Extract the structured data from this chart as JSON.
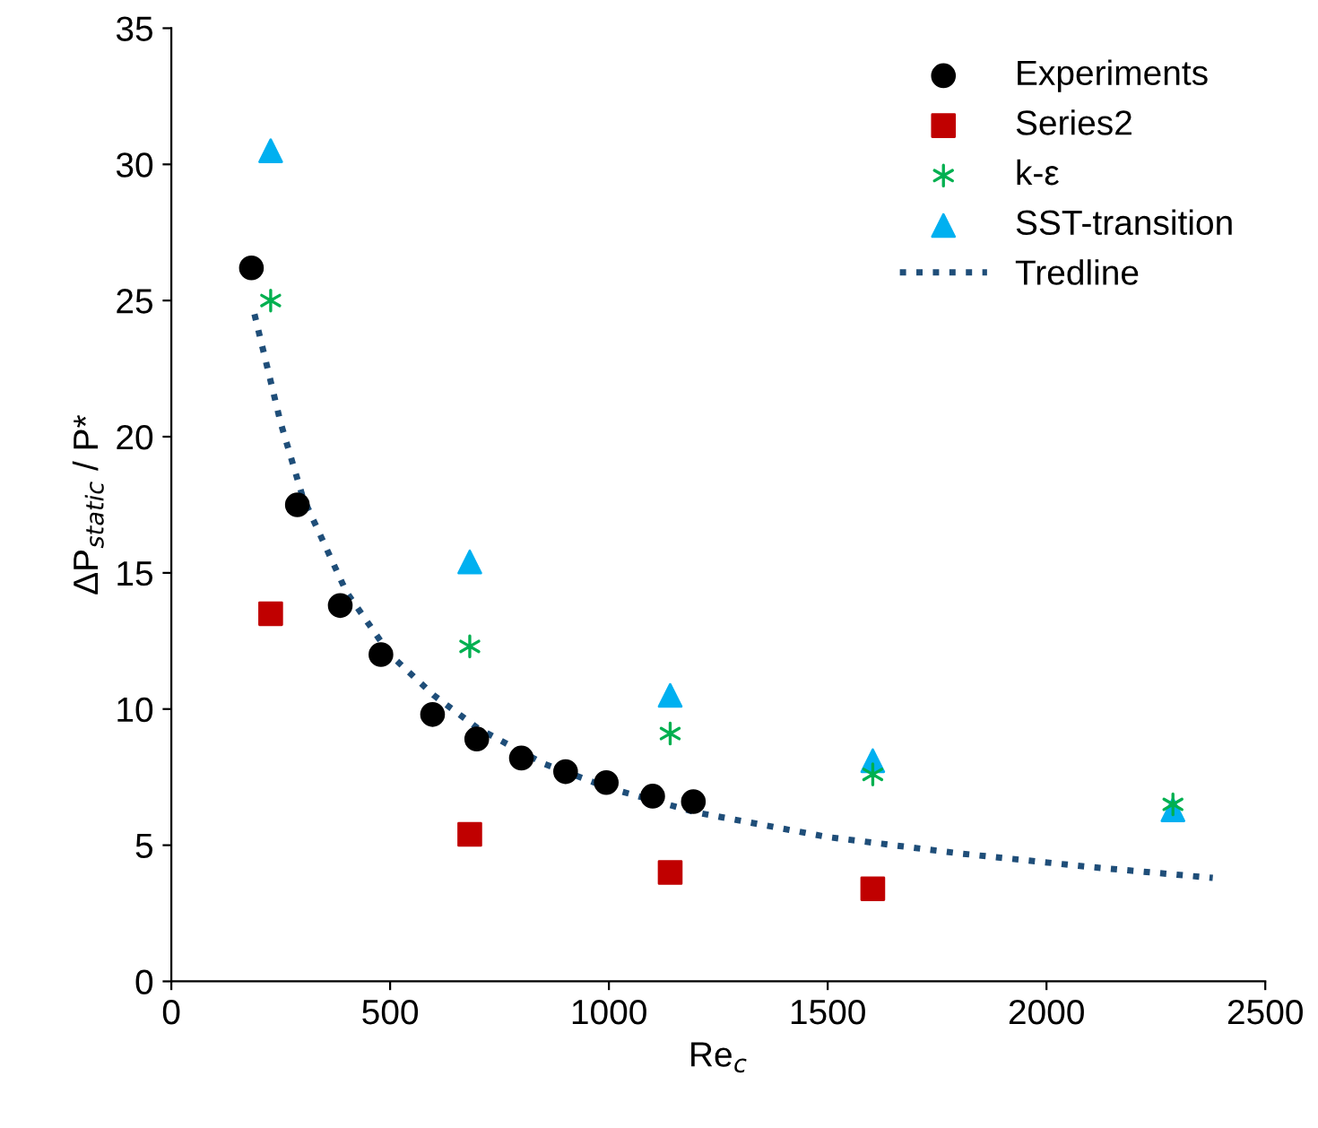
{
  "chart_data": {
    "type": "scatter",
    "xlabel": "Re$_{c}$",
    "ylabel": "ΔP$_{static}$ / P*",
    "xlim": [
      0,
      2500
    ],
    "ylim": [
      0,
      35
    ],
    "xticks": [
      0,
      500,
      1000,
      1500,
      2000,
      2500
    ],
    "yticks": [
      0,
      5,
      10,
      15,
      20,
      25,
      30,
      35
    ],
    "grid": false,
    "legend": "top right",
    "series": [
      {
        "name": "Experiments",
        "color": "#000000",
        "marker": "circle",
        "x": [
          183,
          288,
          386,
          479,
          597,
          698,
          800,
          901,
          994,
          1100,
          1193
        ],
        "values": [
          26.2,
          17.5,
          13.8,
          12.0,
          9.8,
          8.9,
          8.2,
          7.7,
          7.3,
          6.8,
          6.6
        ]
      },
      {
        "name": "Series2",
        "color": "#c00000",
        "marker": "square",
        "x": [
          227,
          682,
          1140,
          1603
        ],
        "values": [
          13.5,
          5.4,
          4.0,
          3.4
        ]
      },
      {
        "name": "k-ε",
        "color": "#00b050",
        "marker": "cross",
        "x": [
          227,
          682,
          1140,
          1603,
          2289
        ],
        "values": [
          25.0,
          12.3,
          9.1,
          7.6,
          6.5
        ]
      },
      {
        "name": "SST-transition",
        "color": "#00b0f0",
        "marker": "triangle",
        "x": [
          227,
          682,
          1140,
          1603,
          2289
        ],
        "values": [
          30.5,
          15.4,
          10.5,
          8.1,
          6.3
        ]
      },
      {
        "name": "Tredline",
        "type": "line",
        "color": "#1f4e79",
        "marker": "none",
        "line_style": "dotted",
        "x": [
          190,
          250,
          300,
          400,
          500,
          600,
          700,
          850,
          1000,
          1200,
          1500,
          1800,
          2100,
          2380
        ],
        "values": [
          24.5,
          20.5,
          17.8,
          14.3,
          12.0,
          10.5,
          9.3,
          8.0,
          7.1,
          6.2,
          5.3,
          4.7,
          4.2,
          3.8
        ]
      }
    ]
  }
}
